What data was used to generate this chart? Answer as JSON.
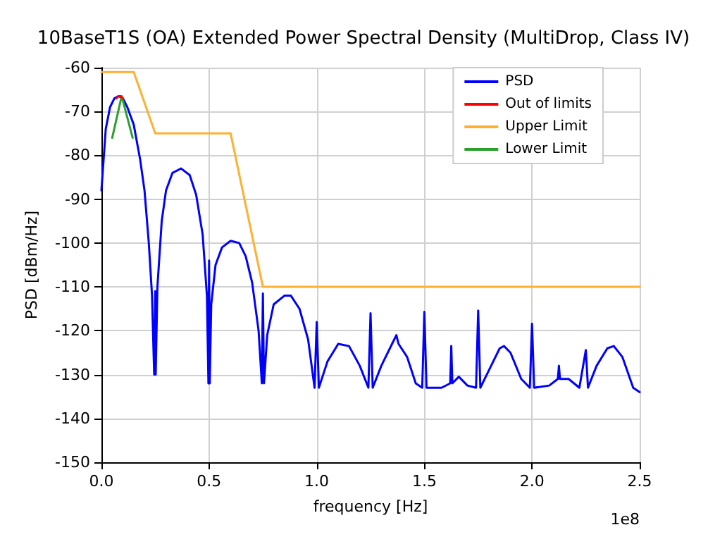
{
  "chart_data": {
    "type": "line",
    "title": "10BaseT1S (OA) Extended Power Spectral Density (MultiDrop, Class IV)",
    "xlabel": "frequency [Hz]",
    "ylabel": "PSD [dBm/Hz]",
    "annotations": [
      "1e8"
    ],
    "xlim": [
      0,
      2.5
    ],
    "xticks": [
      {
        "value": 0,
        "label": "0.0"
      },
      0.5,
      {
        "value": 1,
        "label": "1.0"
      },
      1.5,
      {
        "value": 2,
        "label": "2.0"
      },
      2.5
    ],
    "ylim": [
      -150,
      -60
    ],
    "yticks": [
      -150,
      -140,
      -130,
      -120,
      -110,
      -100,
      -90,
      -80,
      -70,
      -60
    ],
    "grid": true,
    "legend": "top right",
    "marker": "none",
    "line_style": "solid",
    "series": [
      {
        "name": "PSD",
        "color": "#0000ff",
        "x": [
          0,
          0.02,
          0.04,
          0.06,
          0.08,
          0.1,
          0.12,
          0.15,
          0.18,
          0.2,
          0.22,
          0.235,
          0.245,
          0.25,
          0.252,
          0.26,
          0.28,
          0.3,
          0.33,
          0.37,
          0.41,
          0.44,
          0.47,
          0.49,
          0.497,
          0.5,
          0.503,
          0.51,
          0.53,
          0.56,
          0.6,
          0.64,
          0.67,
          0.7,
          0.73,
          0.745,
          0.75,
          0.755,
          0.77,
          0.8,
          0.85,
          0.88,
          0.92,
          0.96,
          0.99,
          1.0,
          1.01,
          1.05,
          1.1,
          1.15,
          1.2,
          1.24,
          1.25,
          1.26,
          1.3,
          1.35,
          1.37,
          1.38,
          1.42,
          1.46,
          1.49,
          1.5,
          1.51,
          1.58,
          1.62,
          1.625,
          1.63,
          1.66,
          1.7,
          1.74,
          1.75,
          1.76,
          1.8,
          1.85,
          1.87,
          1.9,
          1.95,
          1.99,
          2.0,
          2.01,
          2.08,
          2.12,
          2.125,
          2.13,
          2.17,
          2.22,
          2.25,
          2.26,
          2.3,
          2.35,
          2.38,
          2.42,
          2.47,
          2.5
        ],
        "values": [
          -88,
          -74,
          -69,
          -67,
          -66.5,
          -67,
          -69,
          -73,
          -81,
          -88,
          -100,
          -112,
          -130,
          -111,
          -130,
          -110,
          -95,
          -88,
          -84,
          -83,
          -84.5,
          -89,
          -98,
          -112,
          -132,
          -104,
          -132,
          -114,
          -105,
          -101,
          -99.5,
          -100,
          -103,
          -109,
          -120,
          -132,
          -111.5,
          -132,
          -121,
          -114,
          -112,
          -112,
          -115,
          -122,
          -133,
          -118,
          -133,
          -127,
          -123,
          -123.5,
          -128,
          -133,
          -116,
          -133,
          -128,
          -123,
          -121,
          -123,
          -126,
          -132,
          -133,
          -115.7,
          -133,
          -133,
          -132,
          -123.5,
          -132,
          -130.5,
          -132.5,
          -133,
          -115.4,
          -133,
          -129,
          -124,
          -123.5,
          -125,
          -131,
          -133,
          -118.4,
          -133,
          -132.5,
          -131,
          -128,
          -131,
          -131,
          -133,
          -124.4,
          -133,
          -128,
          -124,
          -123.5,
          -126,
          -133,
          -134
        ]
      },
      {
        "name": "Out of limits",
        "color": "#ff0000",
        "x": [
          0.07,
          0.08,
          0.09,
          0.1
        ],
        "values": [
          -67,
          -66.5,
          -66.5,
          -67
        ]
      },
      {
        "name": "Upper Limit",
        "color": "#ffb030",
        "x": [
          0,
          0.15,
          0.25,
          0.6,
          0.75,
          2.5
        ],
        "values": [
          -61,
          -61,
          -75,
          -75,
          -110,
          -110
        ]
      },
      {
        "name": "Lower Limit",
        "color": "#2ca02c",
        "x": [
          0.05,
          0.094,
          0.145
        ],
        "values": [
          -76,
          -66.5,
          -76
        ]
      }
    ]
  }
}
